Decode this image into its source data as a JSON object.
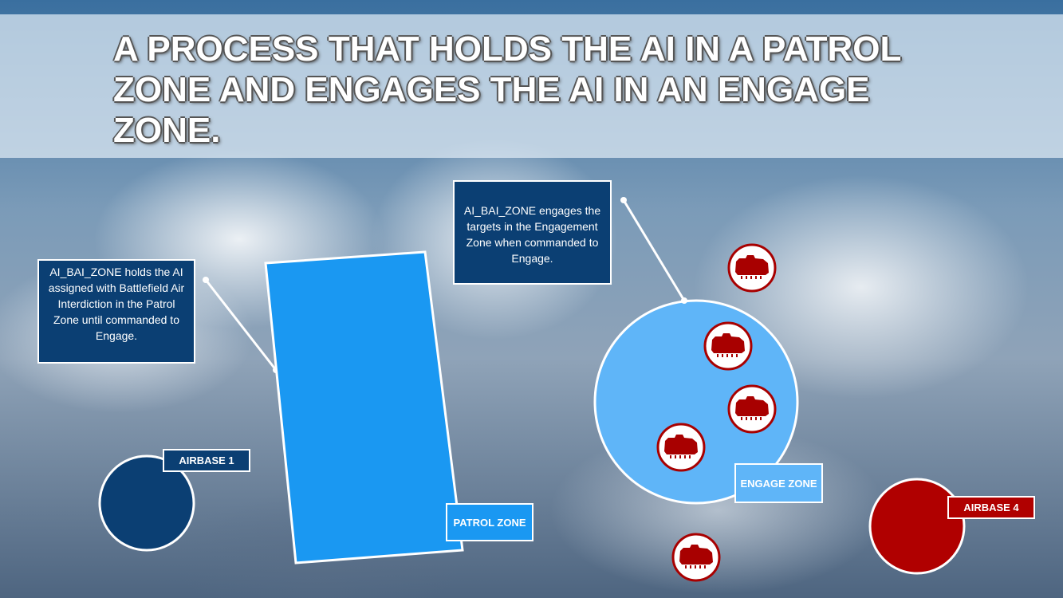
{
  "title": "A PROCESS THAT HOLDS THE AI IN A PATROL ZONE AND ENGAGES THE AI IN AN ENGAGE ZONE.",
  "callouts": {
    "patrol": "AI_BAI_ZONE holds the AI assigned with Battlefield Air Interdiction in the Patrol Zone until commanded to Engage.",
    "engage": "AI_BAI_ZONE engages the targets in the Engagement Zone when commanded to Engage."
  },
  "labels": {
    "patrol_zone": "PATROL ZONE",
    "engage_zone": "ENGAGE ZONE",
    "airbase_1": "AIRBASE 1",
    "airbase_4": "AIRBASE 4"
  },
  "colors": {
    "navy": "#0b3f73",
    "patrol_zone": "#1a98f2",
    "engage_zone": "#5fb5f8",
    "enemy_red": "#a80000"
  },
  "icons": [
    "tank-icon"
  ]
}
